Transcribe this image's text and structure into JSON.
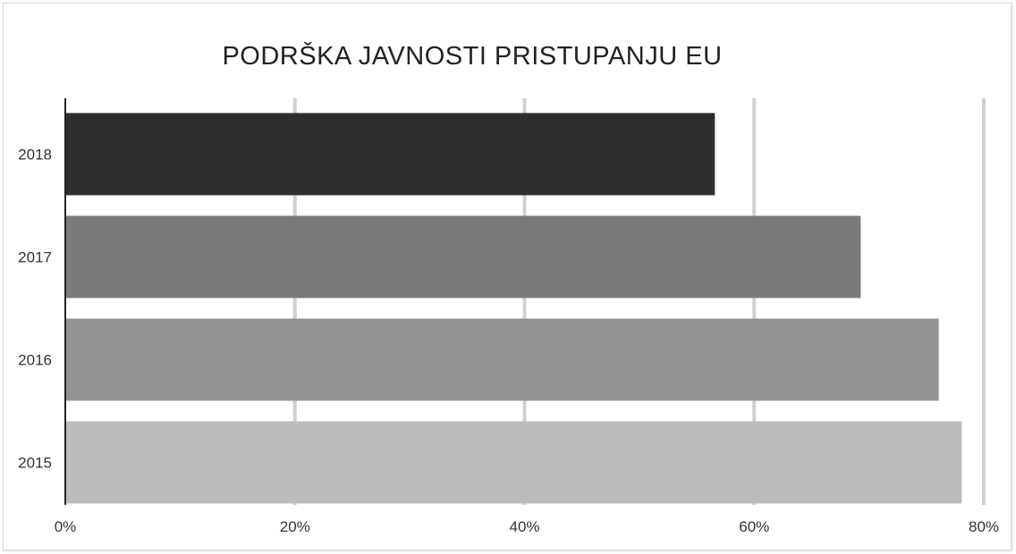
{
  "chart_data": {
    "type": "bar",
    "orientation": "horizontal",
    "title": "PODRŠKA JAVNOSTI PRISTUPANJU EU",
    "xlabel": "",
    "ylabel": "",
    "categories": [
      "2018",
      "2017",
      "2016",
      "2015"
    ],
    "values": [
      56.5,
      69.2,
      76,
      78
    ],
    "colors": [
      "#2e2e2e",
      "#7a7a7a",
      "#939393",
      "#bcbcbc"
    ],
    "xlim": [
      0,
      80
    ],
    "xticks": [
      0,
      20,
      40,
      60,
      80
    ],
    "xtick_labels": [
      "0%",
      "20%",
      "40%",
      "60%",
      "80%"
    ],
    "grid": "vertical",
    "legend": "none"
  }
}
